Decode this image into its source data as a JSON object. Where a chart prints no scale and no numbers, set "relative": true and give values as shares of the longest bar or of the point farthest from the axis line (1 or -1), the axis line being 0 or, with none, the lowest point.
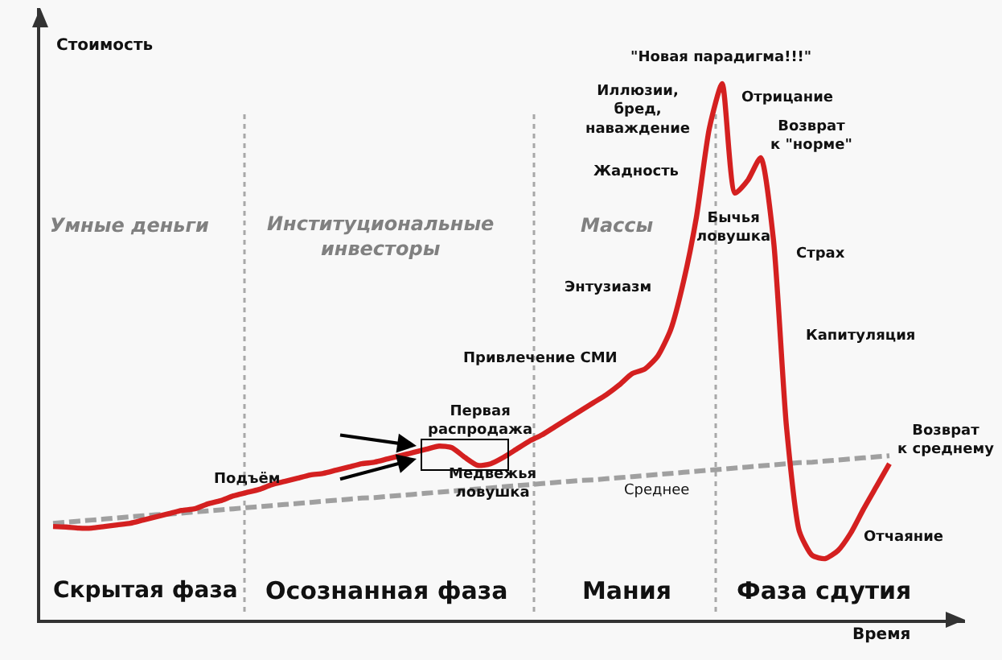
{
  "chart_data": {
    "type": "line",
    "relative": true,
    "xlabel": "Время",
    "ylabel": "Стоимость",
    "categories": [
      null,
      null,
      null,
      null,
      null,
      null,
      null,
      null,
      null,
      null,
      null,
      null,
      null,
      null,
      null,
      null,
      null,
      null,
      null,
      null,
      null,
      null,
      null,
      null,
      null,
      null,
      null,
      null,
      null,
      null,
      null,
      null,
      null,
      null,
      null,
      null,
      null,
      null,
      null,
      null,
      null,
      null,
      null,
      null,
      null,
      null,
      null,
      null,
      null,
      null,
      null,
      null,
      null,
      null,
      null,
      null,
      null,
      null,
      null,
      null,
      null,
      null,
      null,
      null,
      null,
      null
    ],
    "series": [
      {
        "color": "#a0a0a0",
        "line_style": "dashed",
        "name": "Среднее",
        "values": [
          0.18,
          0.182,
          0.184,
          0.186,
          0.188,
          0.19,
          0.192,
          0.194,
          0.196,
          0.197,
          0.199,
          0.201,
          0.203,
          0.205,
          0.207,
          0.209,
          0.211,
          0.213,
          0.215,
          0.217,
          0.219,
          0.221,
          0.223,
          0.225,
          0.227,
          0.228,
          0.23,
          0.232,
          0.234,
          0.236,
          0.238,
          0.24,
          0.242,
          0.244,
          0.246,
          0.248,
          0.25,
          0.252,
          0.254,
          0.256,
          0.258,
          0.26,
          0.261,
          0.263,
          0.265,
          0.267,
          0.269,
          0.271,
          0.273,
          0.275,
          0.277,
          0.279,
          0.281,
          0.283,
          0.285,
          0.287,
          0.289,
          0.291,
          0.293,
          0.294,
          0.296,
          0.298,
          0.3,
          0.302,
          0.304,
          0.306
        ]
      },
      {
        "color": "#d42020",
        "line_style": "solid",
        "values": [
          0.174,
          0.173,
          0.171,
          0.171,
          0.174,
          0.177,
          0.18,
          0.186,
          0.192,
          0.198,
          0.204,
          0.207,
          0.216,
          0.222,
          0.231,
          0.237,
          0.243,
          0.252,
          0.258,
          0.264,
          0.27,
          0.273,
          0.279,
          0.285,
          0.291,
          0.294,
          0.3,
          0.306,
          0.312,
          0.318,
          0.324,
          0.321,
          0.303,
          0.288,
          0.291,
          0.303,
          0.318,
          0.333,
          0.345,
          0.36,
          0.375,
          0.39,
          0.405,
          0.42,
          0.438,
          0.459,
          0.468,
          0.492,
          0.541,
          0.631,
          0.751,
          0.916,
          1,
          0.796,
          0.82,
          0.862,
          0.706,
          0.36,
          0.165,
          0.12,
          0.114,
          0.129,
          0.162,
          0.207,
          0.249,
          0.291
        ]
      }
    ],
    "annotations": [
      "Умные деньги",
      "Институциональные\nинвесторы",
      "Массы",
      "Скрытая фаза",
      "Осознанная фаза",
      "Мания",
      "Фаза сдутия",
      "Подъём",
      "Первая\nраспродажа",
      "Медвежья\nловушка",
      "Привлечение СМИ",
      "Энтузиазм",
      "Жадность",
      "Иллюзии,\nбред,\nнаваждение",
      "\"Новая парадигма!!!\"",
      "Отрицание",
      "Возврат\nк \"норме\"",
      "Бычья\nловушка",
      "Страх",
      "Капитуляция",
      "Возврат\nк среднему",
      "Отчаяние"
    ],
    "legend": false,
    "grid": false,
    "marker": "none"
  }
}
